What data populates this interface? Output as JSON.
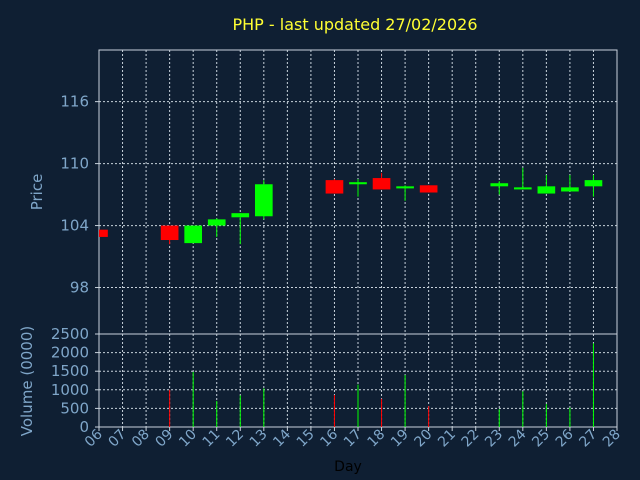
{
  "title": "PHP - last updated 27/02/2026",
  "colors": {
    "background": "#0f1f33",
    "up": "#00ff00",
    "down": "#ff0000",
    "title": "#ffff33",
    "axis_text": "#7fa6c9"
  },
  "chart_data": [
    {
      "type": "candlestick",
      "ylabel": "Price",
      "ylim": [
        93.5,
        121
      ],
      "yticks": [
        98,
        104,
        110,
        116
      ],
      "candles": [
        {
          "day": "06",
          "open": 103.6,
          "close": 102.9,
          "high": 103.6,
          "low": 102.9
        },
        {
          "day": "09",
          "open": 104.0,
          "close": 102.6,
          "high": 104.0,
          "low": 102.2
        },
        {
          "day": "10",
          "open": 102.3,
          "close": 104.0,
          "high": 104.0,
          "low": 102.3
        },
        {
          "day": "11",
          "open": 104.0,
          "close": 104.6,
          "high": 104.7,
          "low": 102.9
        },
        {
          "day": "12",
          "open": 104.8,
          "close": 105.2,
          "high": 105.2,
          "low": 102.2
        },
        {
          "day": "13",
          "open": 104.9,
          "close": 108.0,
          "high": 108.4,
          "low": 104.6
        },
        {
          "day": "16",
          "open": 108.4,
          "close": 107.1,
          "high": 108.5,
          "low": 107.1
        },
        {
          "day": "17",
          "open": 108.0,
          "close": 108.2,
          "high": 108.5,
          "low": 106.8
        },
        {
          "day": "18",
          "open": 108.6,
          "close": 107.5,
          "high": 109.1,
          "low": 107.5
        },
        {
          "day": "19",
          "open": 107.6,
          "close": 107.8,
          "high": 107.9,
          "low": 106.4
        },
        {
          "day": "20",
          "open": 107.9,
          "close": 107.2,
          "high": 107.9,
          "low": 107.2
        },
        {
          "day": "23",
          "open": 107.8,
          "close": 108.1,
          "high": 108.3,
          "low": 107.0
        },
        {
          "day": "24",
          "open": 107.5,
          "close": 107.7,
          "high": 109.6,
          "low": 107.5
        },
        {
          "day": "25",
          "open": 107.1,
          "close": 107.8,
          "high": 108.9,
          "low": 107.1
        },
        {
          "day": "26",
          "open": 107.3,
          "close": 107.7,
          "high": 108.9,
          "low": 107.3
        },
        {
          "day": "27",
          "open": 107.8,
          "close": 108.4,
          "high": 108.9,
          "low": 106.8
        }
      ]
    },
    {
      "type": "bar",
      "ylabel": "Volume (0000)",
      "xlabel": "Day",
      "ylim": [
        0,
        2500
      ],
      "yticks": [
        0,
        500,
        1000,
        1500,
        2000,
        2500
      ],
      "x_ticks": [
        "06",
        "07",
        "08",
        "09",
        "10",
        "11",
        "12",
        "13",
        "14",
        "15",
        "16",
        "17",
        "18",
        "19",
        "20",
        "21",
        "22",
        "23",
        "24",
        "25",
        "26",
        "27",
        "28"
      ],
      "x_domain": [
        6,
        28
      ],
      "volumes": [
        {
          "day": "09",
          "value": 1000,
          "direction": "down"
        },
        {
          "day": "10",
          "value": 1480,
          "direction": "up"
        },
        {
          "day": "11",
          "value": 700,
          "direction": "up"
        },
        {
          "day": "12",
          "value": 850,
          "direction": "up"
        },
        {
          "day": "13",
          "value": 1040,
          "direction": "up"
        },
        {
          "day": "16",
          "value": 860,
          "direction": "down"
        },
        {
          "day": "17",
          "value": 1140,
          "direction": "up"
        },
        {
          "day": "18",
          "value": 760,
          "direction": "down"
        },
        {
          "day": "19",
          "value": 1400,
          "direction": "up"
        },
        {
          "day": "20",
          "value": 560,
          "direction": "down"
        },
        {
          "day": "23",
          "value": 480,
          "direction": "up"
        },
        {
          "day": "24",
          "value": 960,
          "direction": "up"
        },
        {
          "day": "25",
          "value": 620,
          "direction": "up"
        },
        {
          "day": "26",
          "value": 520,
          "direction": "up"
        },
        {
          "day": "27",
          "value": 2250,
          "direction": "up"
        }
      ]
    }
  ]
}
